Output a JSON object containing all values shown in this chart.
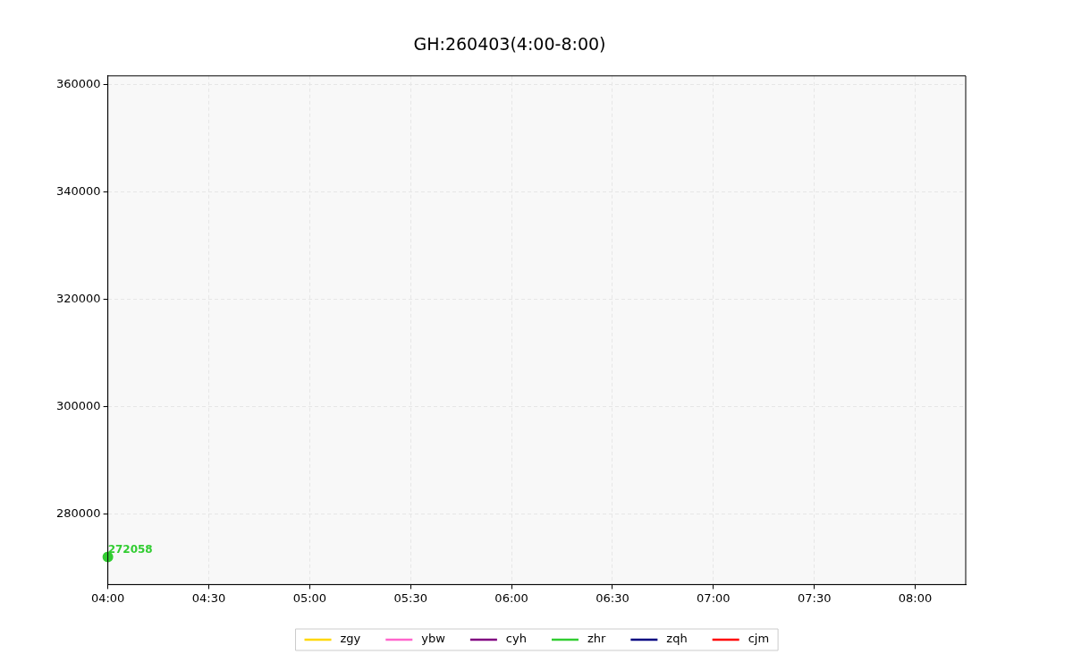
{
  "chart_data": {
    "type": "line",
    "title": "GH:260403(4:00-8:00)",
    "xlim": [
      4,
      8.25
    ],
    "xticks": [
      {
        "value": 4,
        "label": "04:00"
      },
      {
        "value": 4.5,
        "label": "04:30"
      },
      {
        "value": 5,
        "label": "05:00"
      },
      {
        "value": 5.5,
        "label": "05:30"
      },
      {
        "value": 6,
        "label": "06:00"
      },
      {
        "value": 6.5,
        "label": "06:30"
      },
      {
        "value": 7,
        "label": "07:00"
      },
      {
        "value": 7.5,
        "label": "07:30"
      },
      {
        "value": 8,
        "label": "08:00"
      }
    ],
    "ylim": [
      266900,
      361600
    ],
    "yticks": [
      280000,
      300000,
      320000,
      340000,
      360000
    ],
    "series": [
      {
        "name": "zgy",
        "color": "#ffd700"
      },
      {
        "name": "ybw",
        "color": "#ff66cc"
      },
      {
        "name": "cyh",
        "color": "#800080"
      },
      {
        "name": "zhr",
        "color": "#32cd32",
        "x": [
          4
        ],
        "values": [
          272058
        ]
      },
      {
        "name": "zqh",
        "color": "#000080"
      },
      {
        "name": "cjm",
        "color": "#ff0000"
      }
    ],
    "data_labels": true,
    "marker": "circle",
    "line_style": "solid",
    "grid": true,
    "legend": "bottom"
  }
}
